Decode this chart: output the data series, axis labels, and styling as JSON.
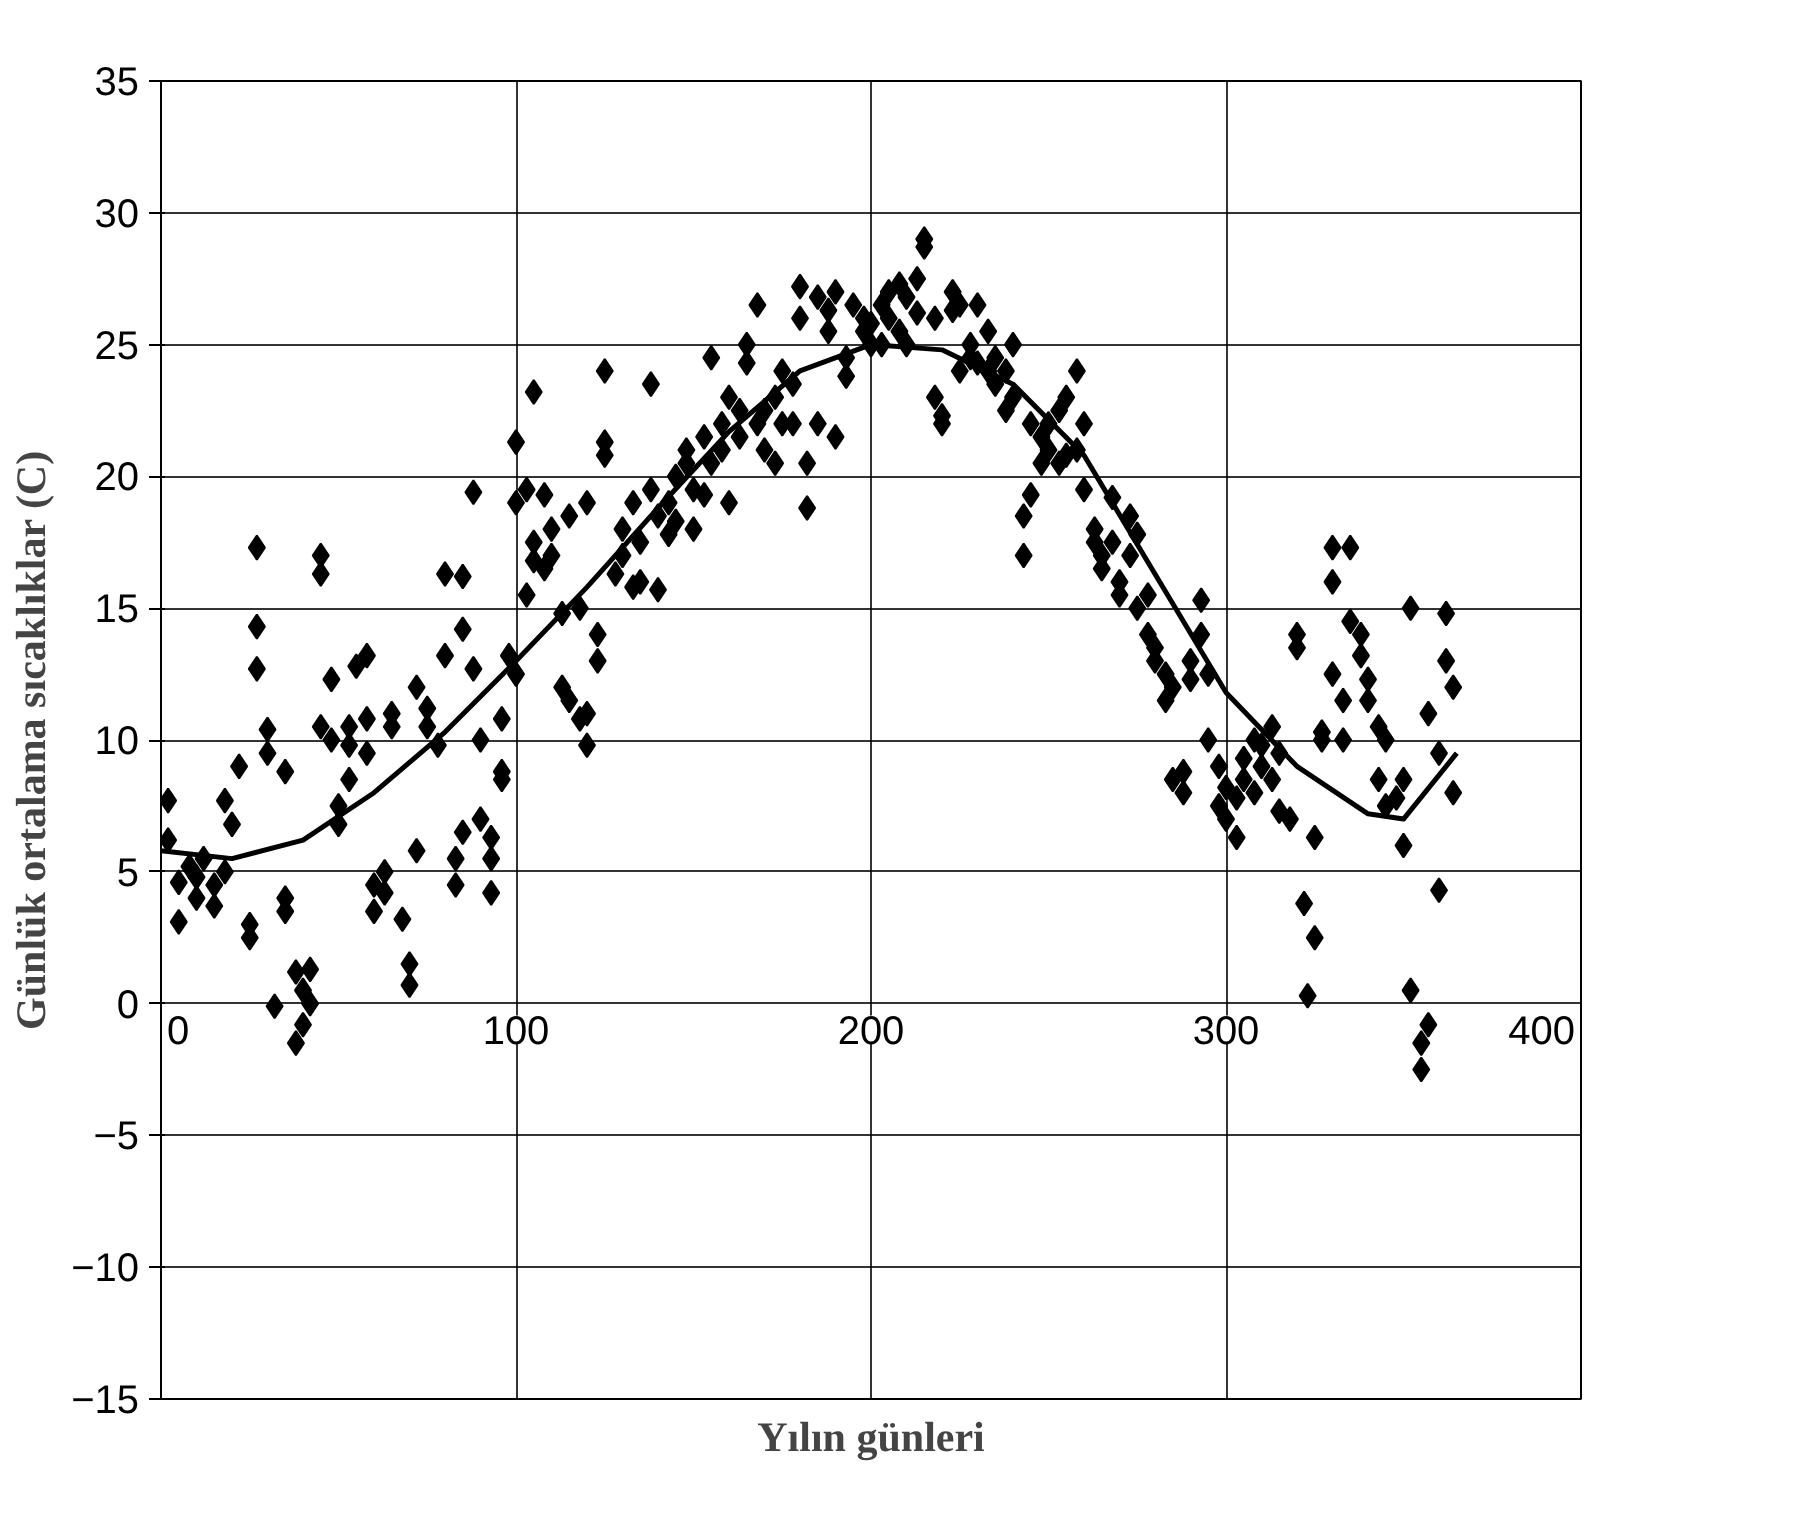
{
  "chart_data": {
    "type": "scatter",
    "xlabel": "Yılın günleri",
    "ylabel": "Günlük ortalama sıcaklıklar (C)",
    "xlim": [
      0,
      400
    ],
    "ylim": [
      -15,
      35
    ],
    "xticks": [
      0,
      100,
      200,
      300,
      400
    ],
    "yticks": [
      -15,
      -10,
      -5,
      0,
      5,
      10,
      15,
      20,
      25,
      30,
      35
    ],
    "grid": true,
    "series": [
      {
        "type": "scatter",
        "marker": "diamond",
        "color": "#000000",
        "x": [
          2,
          2,
          5,
          5,
          8,
          10,
          10,
          12,
          15,
          15,
          18,
          18,
          20,
          22,
          25,
          25,
          27,
          27,
          27,
          30,
          30,
          32,
          35,
          35,
          35,
          38,
          38,
          40,
          40,
          42,
          42,
          45,
          45,
          45,
          48,
          48,
          50,
          50,
          53,
          53,
          53,
          55,
          58,
          58,
          58,
          60,
          60,
          63,
          63,
          65,
          65,
          68,
          70,
          70,
          72,
          72,
          75,
          75,
          78,
          80,
          80,
          83,
          83,
          85,
          85,
          85,
          88,
          88,
          90,
          90,
          93,
          93,
          93,
          96,
          96,
          96,
          98,
          100,
          100,
          100,
          103,
          103,
          105,
          105,
          105,
          108,
          108,
          110,
          110,
          113,
          113,
          115,
          115,
          118,
          118,
          120,
          120,
          120,
          123,
          123,
          125,
          125,
          125,
          128,
          130,
          130,
          133,
          133,
          135,
          135,
          138,
          138,
          140,
          140,
          143,
          143,
          145,
          145,
          148,
          148,
          150,
          150,
          153,
          153,
          155,
          155,
          158,
          158,
          160,
          160,
          163,
          163,
          165,
          165,
          168,
          168,
          170,
          170,
          173,
          173,
          175,
          175,
          178,
          178,
          180,
          180,
          182,
          182,
          185,
          185,
          188,
          188,
          190,
          190,
          193,
          193,
          195,
          198,
          198,
          200,
          200,
          203,
          203,
          205,
          205,
          208,
          208,
          210,
          210,
          213,
          213,
          215,
          215,
          218,
          218,
          220,
          220,
          223,
          223,
          225,
          225,
          228,
          228,
          230,
          230,
          233,
          233,
          235,
          235,
          238,
          238,
          240,
          240,
          243,
          243,
          245,
          245,
          248,
          248,
          250,
          250,
          253,
          253,
          255,
          255,
          258,
          258,
          260,
          260,
          263,
          263,
          265,
          265,
          268,
          268,
          270,
          270,
          273,
          273,
          275,
          275,
          278,
          278,
          280,
          280,
          283,
          283,
          285,
          285,
          288,
          288,
          290,
          290,
          293,
          293,
          295,
          295,
          298,
          298,
          300,
          300,
          303,
          303,
          305,
          305,
          308,
          308,
          310,
          310,
          313,
          313,
          315,
          315,
          318,
          320,
          320,
          322,
          323,
          325,
          325,
          327,
          327,
          330,
          330,
          330,
          333,
          333,
          335,
          335,
          338,
          338,
          340,
          340,
          343,
          343,
          345,
          345,
          348,
          350,
          350,
          352,
          352,
          355,
          355,
          357,
          357,
          360,
          360,
          362,
          362,
          364,
          364
        ],
        "values": [
          7.7,
          6.2,
          4.6,
          3.1,
          5.2,
          4.0,
          4.8,
          5.5,
          3.7,
          4.5,
          5.0,
          7.7,
          6.8,
          9.0,
          2.5,
          3.0,
          17.3,
          14.3,
          12.7,
          9.5,
          10.4,
          -0.1,
          4.0,
          3.5,
          8.8,
          1.2,
          -1.5,
          -0.8,
          0.5,
          1.3,
          0.0,
          10.5,
          16.3,
          17.0,
          12.3,
          10.0,
          7.5,
          6.8,
          10.5,
          9.8,
          8.5,
          12.8,
          13.2,
          10.8,
          9.5,
          4.5,
          3.5,
          5.0,
          4.2,
          11.0,
          10.5,
          3.2,
          1.5,
          0.7,
          12.0,
          5.8,
          11.2,
          10.5,
          9.8,
          16.3,
          13.2,
          4.5,
          5.5,
          6.5,
          14.2,
          16.2,
          19.4,
          12.7,
          10.0,
          7.0,
          4.2,
          5.5,
          6.3,
          8.5,
          8.8,
          10.8,
          13.2,
          21.3,
          19.0,
          12.5,
          19.5,
          15.5,
          16.8,
          17.5,
          23.2,
          19.3,
          16.5,
          17.0,
          18.0,
          12.0,
          14.8,
          11.5,
          18.5,
          10.8,
          15.0,
          9.8,
          11.0,
          19.0,
          14.0,
          13.0,
          20.8,
          21.3,
          24.0,
          16.3,
          17.0,
          18.0,
          15.8,
          19.0,
          17.5,
          16.0,
          23.5,
          19.5,
          15.7,
          18.5,
          17.8,
          19.0,
          20.0,
          18.3,
          20.5,
          21.0,
          18.0,
          19.5,
          19.3,
          21.5,
          24.5,
          20.5,
          22.0,
          21.0,
          19.0,
          23.0,
          22.5,
          21.5,
          25.0,
          24.3,
          26.5,
          22.0,
          22.5,
          21.0,
          23.0,
          20.5,
          24.0,
          22.0,
          22.0,
          23.5,
          27.2,
          26.0,
          18.8,
          20.5,
          26.8,
          22.0,
          26.3,
          25.5,
          27.0,
          21.5,
          23.8,
          24.5,
          26.5,
          25.5,
          26.0,
          25.0,
          25.8,
          26.5,
          25.0,
          26.0,
          27.0,
          27.3,
          25.5,
          26.8,
          25.0,
          26.2,
          27.5,
          29.0,
          28.7,
          26.0,
          23.0,
          22.3,
          22.0,
          27.0,
          26.3,
          26.5,
          24.0,
          25.0,
          24.5,
          26.5,
          24.3,
          25.5,
          24.0,
          24.5,
          23.5,
          24.0,
          22.5,
          25.0,
          23.0,
          17.0,
          18.5,
          19.3,
          22.0,
          20.5,
          21.5,
          22.0,
          21.0,
          22.5,
          20.5,
          23.0,
          20.8,
          24.0,
          21.0,
          22.0,
          19.5,
          17.5,
          18.0,
          16.5,
          17.0,
          19.2,
          17.5,
          16.0,
          15.5,
          18.5,
          17.0,
          17.8,
          15.0,
          15.5,
          14.0,
          13.5,
          13.0,
          12.5,
          11.5,
          12.0,
          8.5,
          8.0,
          8.8,
          12.3,
          13.0,
          14.0,
          15.3,
          12.5,
          10.0,
          9.0,
          7.5,
          8.2,
          7.0,
          7.8,
          6.3,
          9.3,
          8.5,
          10.0,
          8.0,
          9.0,
          9.8,
          10.5,
          8.5,
          9.5,
          7.3,
          7.0,
          14.0,
          13.5,
          3.8,
          0.3,
          2.5,
          6.3,
          10.3,
          10.0,
          16.0,
          17.3,
          12.5,
          11.5,
          10.0,
          17.3,
          14.5,
          14.0,
          13.2,
          11.5,
          12.3,
          10.5,
          8.5,
          7.5,
          10.0,
          7.8,
          6.0,
          8.5,
          15.0,
          0.5,
          -2.5,
          -1.5,
          -0.8,
          11.0,
          4.3,
          9.5,
          14.8,
          13.0,
          12.0,
          8.0
        ]
      },
      {
        "type": "line",
        "color": "#000000",
        "x": [
          0,
          20,
          40,
          60,
          80,
          100,
          120,
          140,
          160,
          180,
          200,
          220,
          240,
          260,
          280,
          300,
          320,
          340,
          350,
          365
        ],
        "values": [
          5.8,
          5.5,
          6.2,
          8.0,
          10.3,
          13.0,
          15.8,
          18.8,
          21.7,
          24.0,
          25.0,
          24.8,
          23.5,
          20.8,
          16.3,
          11.8,
          9.0,
          7.2,
          7.0,
          9.5
        ]
      }
    ]
  }
}
